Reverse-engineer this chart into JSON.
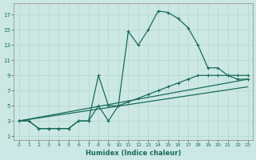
{
  "title": "",
  "xlabel": "Humidex (Indice chaleur)",
  "bg_color": "#cce8e4",
  "grid_color": "#b8d4cc",
  "line_color": "#1a6b5a",
  "xlim": [
    -0.5,
    23.5
  ],
  "ylim": [
    0.5,
    18.5
  ],
  "xticks": [
    0,
    1,
    2,
    3,
    4,
    5,
    6,
    7,
    8,
    9,
    10,
    11,
    12,
    13,
    14,
    15,
    16,
    17,
    18,
    19,
    20,
    21,
    22,
    23
  ],
  "yticks": [
    1,
    3,
    5,
    7,
    9,
    11,
    13,
    15,
    17
  ],
  "series1_x": [
    0,
    1,
    2,
    3,
    4,
    5,
    6,
    7,
    8,
    9,
    10,
    11,
    12,
    13,
    14,
    15,
    16,
    17,
    18,
    19,
    20,
    21,
    22,
    23
  ],
  "series1_y": [
    3,
    3,
    2,
    2,
    2,
    2,
    3,
    3,
    9,
    5,
    5,
    14.8,
    13,
    15,
    17.5,
    17.3,
    16.5,
    15.3,
    13,
    10,
    10,
    9,
    8.5,
    8.5
  ],
  "series2_x": [
    0,
    1,
    2,
    3,
    4,
    5,
    6,
    7,
    8,
    9,
    10,
    11,
    12,
    13,
    14,
    15,
    16,
    17,
    18,
    19,
    20,
    21,
    22,
    23
  ],
  "series2_y": [
    3,
    3,
    2,
    2,
    2,
    2,
    3,
    3,
    5,
    3,
    5,
    5.5,
    6,
    6.5,
    7,
    7.5,
    8,
    8.5,
    9,
    9,
    9,
    9,
    9,
    9
  ],
  "series3_x": [
    0,
    23
  ],
  "series3_y": [
    3,
    8.5
  ],
  "series4_x": [
    0,
    23
  ],
  "series4_y": [
    3,
    7.5
  ]
}
